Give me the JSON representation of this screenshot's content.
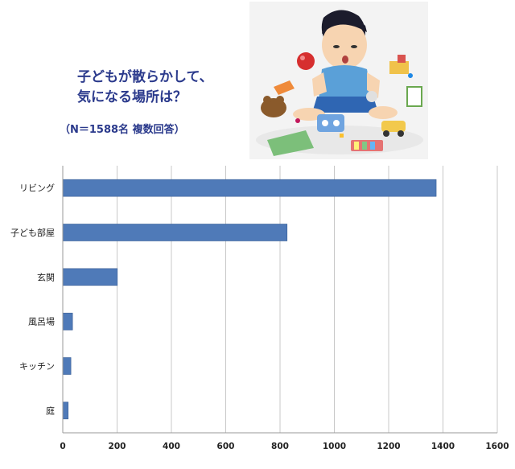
{
  "header": {
    "title_line1": "子どもが散らかして、",
    "title_line2": "気になる場所は？",
    "subtitle": "（N＝1588名  複数回答）"
  },
  "illustration": {
    "subject": "cartoon boy sitting among scattered toys",
    "icon": "messy-toys-illustration"
  },
  "chart_data": {
    "type": "bar",
    "orientation": "horizontal",
    "categories": [
      "リビング",
      "子ども部屋",
      "玄関",
      "風呂場",
      "キッチン",
      "庭"
    ],
    "values": [
      1375,
      826,
      201,
      36,
      30,
      20
    ],
    "xlim": [
      0,
      1600
    ],
    "x_ticks": [
      "0",
      "200",
      "400",
      "600",
      "800",
      "1000",
      "1200",
      "1400",
      "1600"
    ],
    "grid": "vertical",
    "bar_color": "#4f7ab8",
    "bar_edge_color": "#3a5f95",
    "title": "",
    "xlabel": "",
    "ylabel": ""
  }
}
